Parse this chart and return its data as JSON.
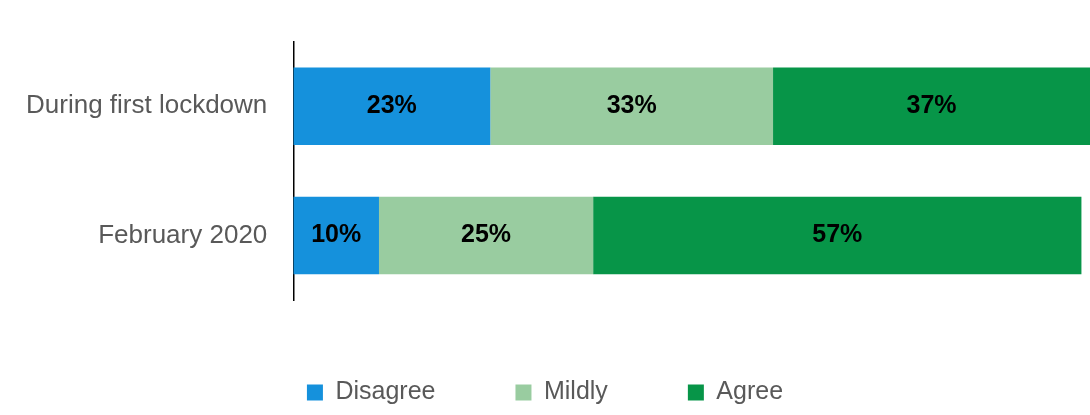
{
  "chart_data": {
    "type": "bar",
    "orientation": "horizontal",
    "stacked": true,
    "categories": [
      "During first lockdown",
      "February 2020"
    ],
    "xlim": [
      0,
      93
    ],
    "tick_labels": "y",
    "grid": false,
    "legend": "bottom",
    "series": [
      {
        "name": "Disagree",
        "color": "#1591dc",
        "values": [
          23,
          10
        ],
        "value_labels": [
          "23%",
          "10%"
        ]
      },
      {
        "name": "Mildly",
        "color": "#99cca0",
        "values": [
          33,
          25
        ],
        "value_labels": [
          "33%",
          "25%"
        ]
      },
      {
        "name": "Agree",
        "color": "#079548",
        "values": [
          37,
          57
        ],
        "value_labels": [
          "37%",
          "57%"
        ]
      }
    ]
  }
}
